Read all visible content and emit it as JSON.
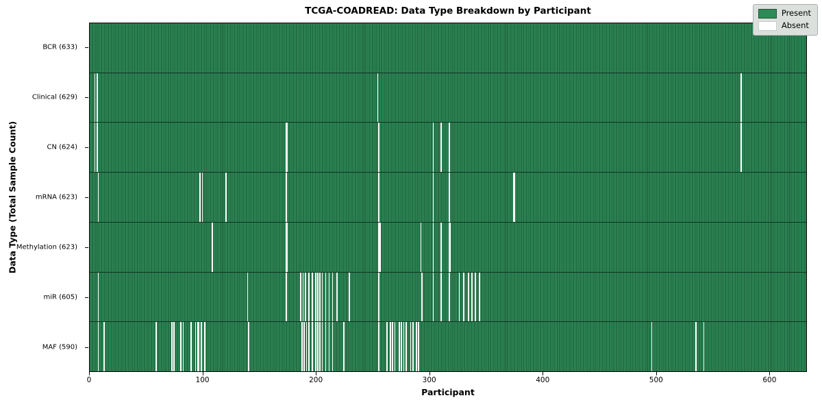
{
  "figure": {
    "title": "TCGA-COADREAD: Data Type Breakdown by Participant",
    "xlabel": "Participant",
    "ylabel": "Data Type (Total Sample Count)"
  },
  "legend": {
    "present_label": "Present",
    "absent_label": "Absent"
  },
  "colors": {
    "present_fill": "#2e8b57",
    "present_edge": "#1b5236",
    "absent_fill": "#ffffff",
    "legend_bg": "#dbe0dd",
    "legend_border": "#aab0ac",
    "axis_color": "#000000"
  },
  "chart_data": {
    "type": "heatmap",
    "title": "TCGA-COADREAD: Data Type Breakdown by Participant",
    "xlabel": "Participant",
    "ylabel": "Data Type (Total Sample Count)",
    "x_ticks": [
      0,
      100,
      200,
      300,
      400,
      500,
      600
    ],
    "x_max": 633,
    "n_participants": 633,
    "legend_entries": [
      "Present",
      "Absent"
    ],
    "legend_position": "upper right",
    "grid": false,
    "rows": [
      {
        "data_type": "BCR",
        "label": "BCR (633)",
        "present_count": 633,
        "absent_count": 0,
        "absent_participants": []
      },
      {
        "data_type": "Clinical",
        "label": "Clinical (629)",
        "present_count": 629,
        "absent_count": 4,
        "absent_participants": [
          4,
          6,
          254,
          575
        ]
      },
      {
        "data_type": "CN",
        "label": "CN (624)",
        "present_count": 624,
        "absent_count": 9,
        "absent_participants": [
          4,
          6,
          173,
          174,
          255,
          303,
          310,
          317,
          575
        ]
      },
      {
        "data_type": "mRNA",
        "label": "mRNA (623)",
        "present_count": 623,
        "absent_count": 10,
        "absent_participants": [
          7,
          97,
          99,
          120,
          173,
          255,
          303,
          317,
          374,
          375
        ]
      },
      {
        "data_type": "Methylation",
        "label": "Methylation (623)",
        "present_count": 623,
        "absent_count": 10,
        "absent_participants": [
          108,
          173,
          174,
          255,
          256,
          292,
          303,
          310,
          317,
          318
        ]
      },
      {
        "data_type": "miR",
        "label": "miR (605)",
        "present_count": 605,
        "absent_count": 28,
        "absent_participants": [
          7,
          139,
          173,
          186,
          188,
          190,
          193,
          196,
          199,
          201,
          203,
          205,
          208,
          211,
          214,
          218,
          229,
          255,
          293,
          303,
          310,
          317,
          326,
          330,
          334,
          337,
          340,
          344
        ]
      },
      {
        "data_type": "MAF",
        "label": "MAF (590)",
        "present_count": 590,
        "absent_count": 43,
        "absent_participants": [
          7,
          12,
          58,
          72,
          74,
          80,
          82,
          89,
          93,
          95,
          96,
          98,
          101,
          140,
          187,
          189,
          191,
          193,
          196,
          199,
          201,
          203,
          205,
          208,
          211,
          214,
          224,
          255,
          262,
          265,
          267,
          269,
          273,
          275,
          277,
          279,
          283,
          285,
          288,
          290,
          496,
          535,
          542
        ]
      }
    ]
  }
}
